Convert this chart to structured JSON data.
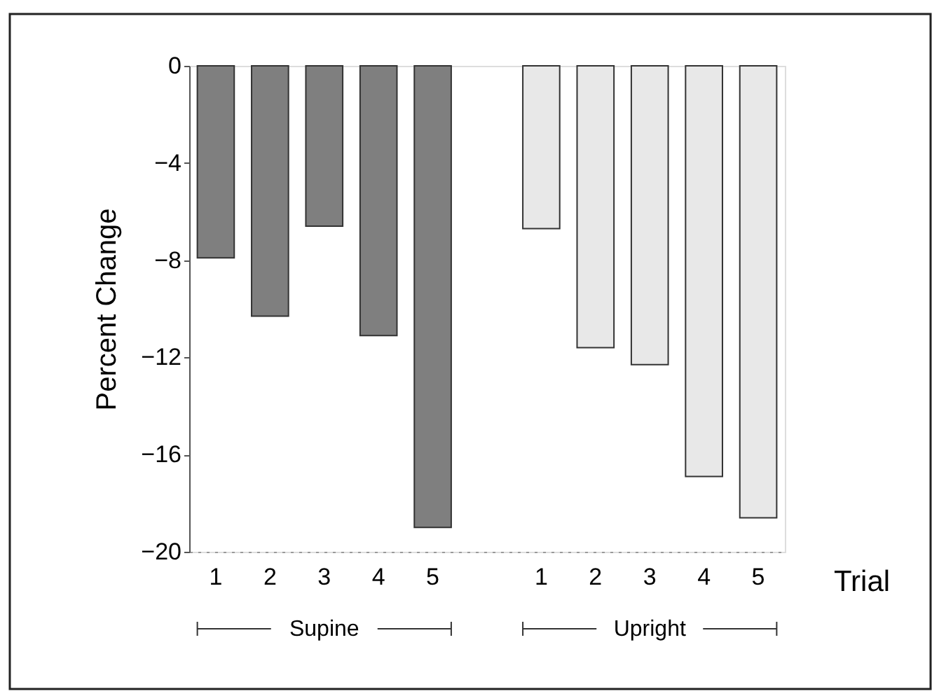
{
  "chart_data": {
    "type": "bar",
    "ylabel": "Percent Change",
    "xlabel": "Trial",
    "categories": [
      "1",
      "2",
      "3",
      "4",
      "5",
      "1",
      "2",
      "3",
      "4",
      "5"
    ],
    "series": [
      {
        "name": "Supine",
        "color": "#7f7f7f",
        "values": [
          -7.9,
          -10.3,
          -6.6,
          -11.1,
          -19.0,
          null,
          null,
          null,
          null,
          null
        ]
      },
      {
        "name": "Upright",
        "color": "#e8e8e8",
        "values": [
          null,
          null,
          null,
          null,
          null,
          -6.7,
          -11.6,
          -12.3,
          -16.9,
          -18.6
        ]
      }
    ],
    "ylim": [
      -20,
      0
    ],
    "yticks": [
      0,
      -4,
      -8,
      -12,
      -16,
      -20
    ],
    "grid": false,
    "legend": "bottom"
  }
}
